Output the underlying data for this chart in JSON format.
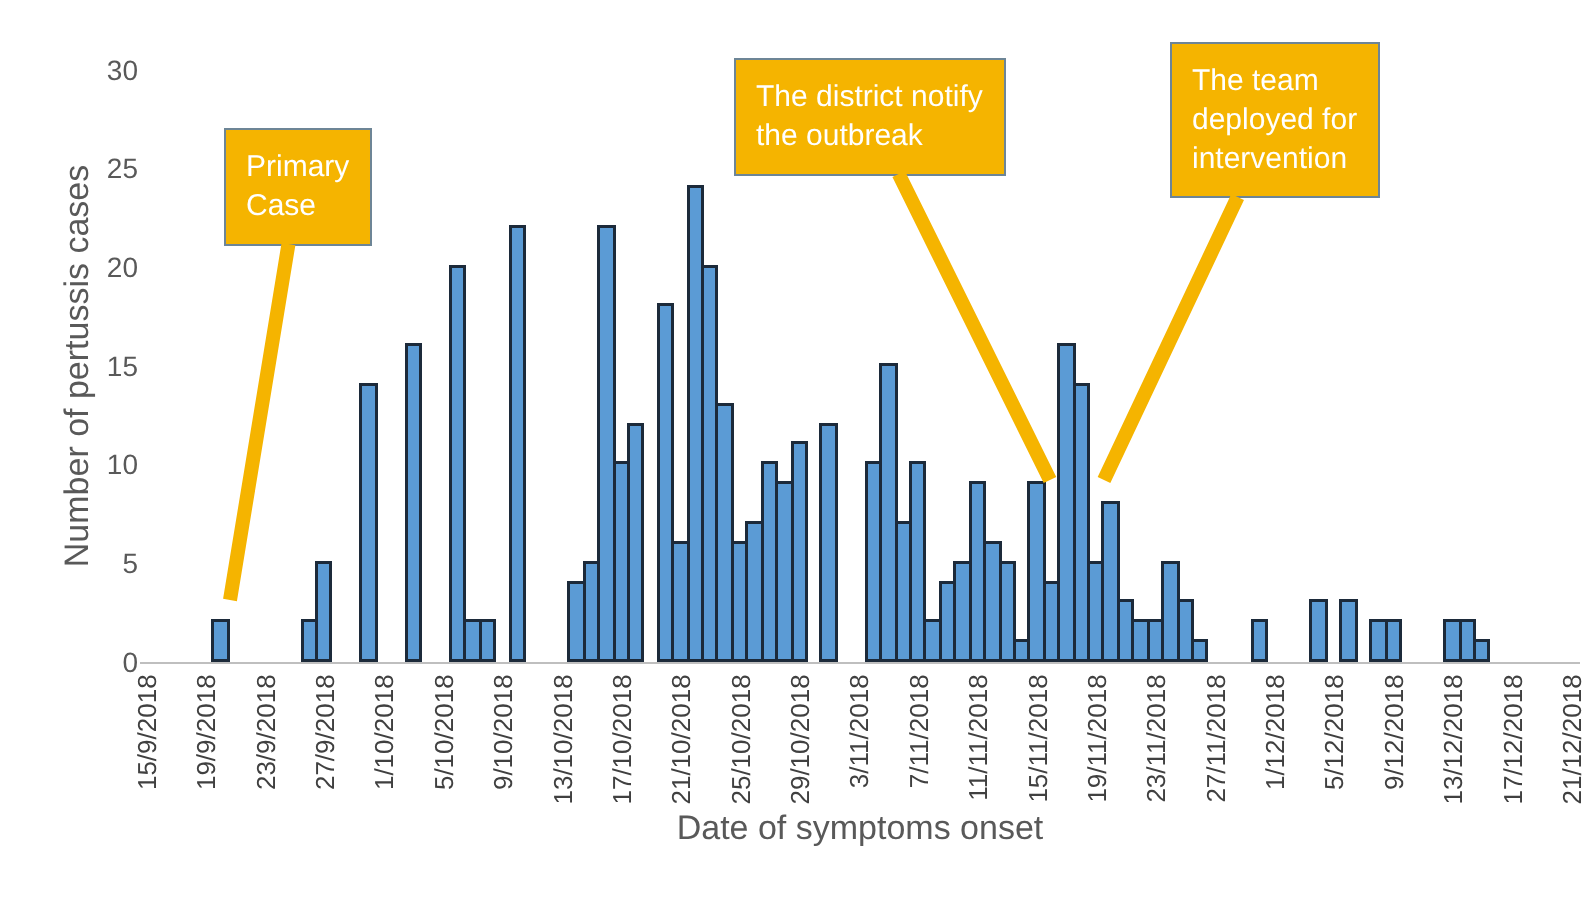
{
  "chart_data": {
    "type": "bar",
    "xlabel": "Date of symptoms onset",
    "ylabel": "Number of pertussis cases",
    "categories": [
      "15/9/2018",
      null,
      null,
      null,
      "19/9/2018",
      null,
      null,
      null,
      "23/9/2018",
      null,
      null,
      null,
      "27/9/2018",
      null,
      null,
      null,
      "1/10/2018",
      null,
      null,
      null,
      "5/10/2018",
      null,
      null,
      null,
      "9/10/2018",
      null,
      null,
      null,
      "13/10/2018",
      null,
      null,
      null,
      "17/10/2018",
      null,
      null,
      null,
      "21/10/2018",
      null,
      null,
      null,
      "25/10/2018",
      null,
      null,
      null,
      "29/10/2018",
      null,
      null,
      null,
      "3/11/2018",
      null,
      null,
      null,
      "7/11/2018",
      null,
      null,
      null,
      "11/11/2018",
      null,
      null,
      null,
      "15/11/2018",
      null,
      null,
      null,
      "19/11/2018",
      null,
      null,
      null,
      "23/11/2018",
      null,
      null,
      null,
      "27/11/2018",
      null,
      null,
      null,
      "1/12/2018",
      null,
      null,
      null,
      "5/12/2018",
      null,
      null,
      null,
      "9/12/2018",
      null,
      null,
      null,
      "13/12/2018",
      null,
      null,
      null,
      "17/12/2018",
      null,
      null,
      null,
      "21/12/2018"
    ],
    "values": [
      null,
      null,
      null,
      null,
      null,
      2,
      null,
      null,
      null,
      null,
      null,
      2,
      5,
      null,
      null,
      14,
      null,
      null,
      16,
      null,
      null,
      20,
      2,
      2,
      null,
      22,
      null,
      null,
      null,
      4,
      5,
      22,
      10,
      12,
      null,
      18,
      6,
      24,
      20,
      13,
      6,
      7,
      10,
      9,
      11,
      null,
      12,
      null,
      null,
      10,
      15,
      7,
      10,
      2,
      4,
      5,
      9,
      6,
      5,
      1,
      9,
      4,
      16,
      14,
      5,
      8,
      3,
      2,
      2,
      5,
      3,
      1,
      null,
      null,
      null,
      2,
      null,
      null,
      null,
      3,
      null,
      3,
      null,
      2,
      2,
      null,
      null,
      null,
      2,
      2,
      1,
      null,
      null,
      null,
      null,
      null,
      null
    ],
    "color": "#5b9bd5",
    "ylim": [
      0,
      30
    ],
    "yticks": [
      0,
      5,
      10,
      15,
      20,
      25,
      30
    ],
    "annotations": [
      "Primary\nCase",
      "The district notify\nthe outbreak",
      "The team\ndeployed for\nintervention"
    ]
  }
}
